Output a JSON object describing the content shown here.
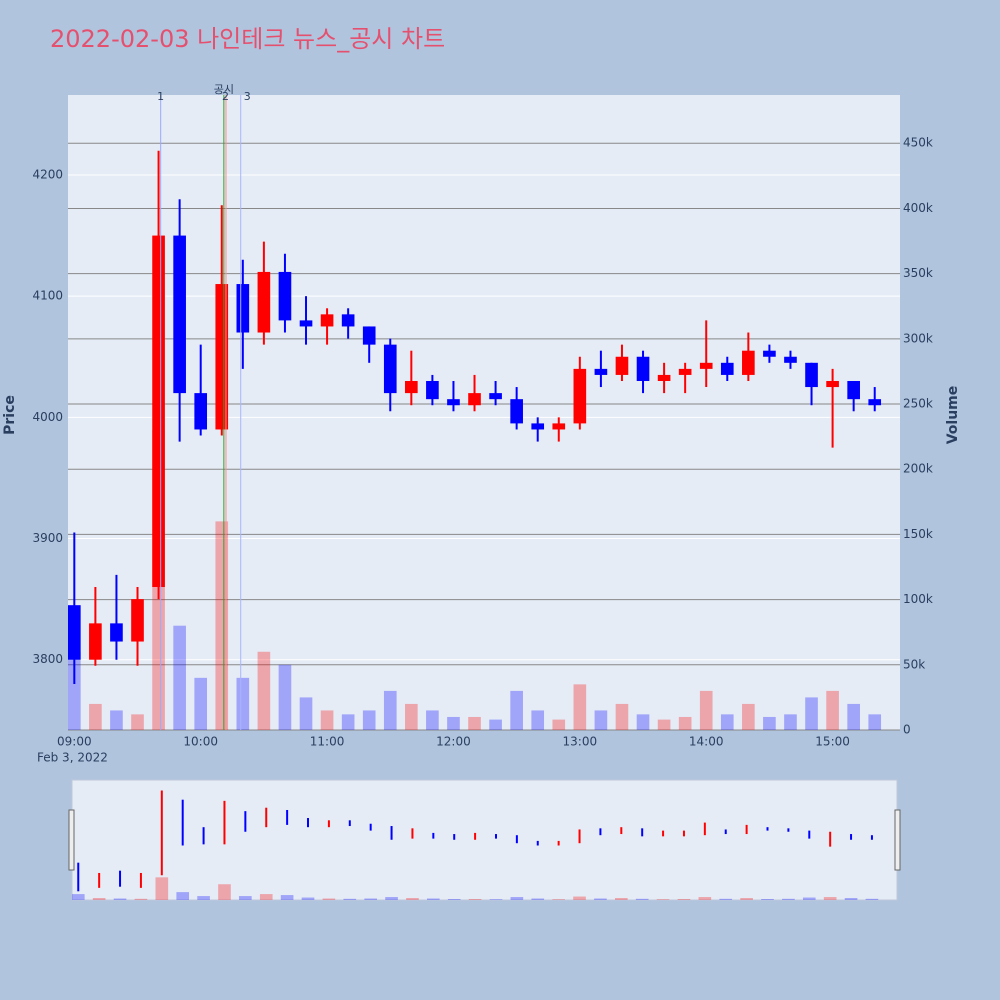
{
  "chart_data": {
    "type": "candlestick",
    "title": "2022-02-03 나인테크 뉴스_공시 차트",
    "y_title": "Price",
    "y2_title": "Volume",
    "x_sublabel": "Feb 3, 2022",
    "x": [
      "09:00",
      "09:10",
      "09:20",
      "09:30",
      "09:40",
      "09:50",
      "10:00",
      "10:10",
      "10:20",
      "10:30",
      "10:40",
      "10:50",
      "11:00",
      "11:10",
      "11:20",
      "11:30",
      "11:40",
      "11:50",
      "12:00",
      "12:10",
      "12:20",
      "12:30",
      "12:40",
      "12:50",
      "13:00",
      "13:10",
      "13:20",
      "13:30",
      "13:40",
      "13:50",
      "14:00",
      "14:10",
      "14:20",
      "14:30",
      "14:40",
      "14:50",
      "15:00",
      "15:10",
      "15:20"
    ],
    "open": [
      3845,
      3800,
      3830,
      3815,
      3860,
      4150,
      4020,
      3990,
      4110,
      4070,
      4120,
      4080,
      4075,
      4085,
      4075,
      4060,
      4020,
      4030,
      4015,
      4010,
      4020,
      4015,
      3995,
      3990,
      3995,
      4040,
      4035,
      4050,
      4030,
      4035,
      4040,
      4045,
      4035,
      4055,
      4050,
      4045,
      4025,
      4030,
      4015
    ],
    "high": [
      3905,
      3860,
      3870,
      3860,
      4220,
      4180,
      4060,
      4175,
      4130,
      4145,
      4135,
      4100,
      4090,
      4090,
      4075,
      4065,
      4055,
      4035,
      4030,
      4035,
      4030,
      4025,
      4000,
      4000,
      4050,
      4055,
      4060,
      4055,
      4045,
      4045,
      4080,
      4050,
      4070,
      4060,
      4055,
      4045,
      4040,
      4030,
      4025
    ],
    "low": [
      3780,
      3795,
      3800,
      3795,
      3850,
      3980,
      3985,
      3985,
      4040,
      4060,
      4070,
      4060,
      4060,
      4065,
      4045,
      4005,
      4010,
      4010,
      4005,
      4005,
      4010,
      3990,
      3980,
      3980,
      3990,
      4025,
      4030,
      4020,
      4020,
      4020,
      4025,
      4030,
      4030,
      4045,
      4040,
      4010,
      3975,
      4005,
      4005
    ],
    "close": [
      3800,
      3830,
      3815,
      3850,
      4150,
      4020,
      3990,
      4110,
      4070,
      4120,
      4080,
      4075,
      4085,
      4075,
      4060,
      4020,
      4030,
      4015,
      4010,
      4020,
      4015,
      3995,
      3990,
      3995,
      4040,
      4035,
      4050,
      4030,
      4035,
      4040,
      4045,
      4035,
      4055,
      4050,
      4045,
      4025,
      4030,
      4015,
      4010
    ],
    "volume": [
      60000,
      20000,
      15000,
      12000,
      230000,
      80000,
      40000,
      160000,
      40000,
      60000,
      50000,
      25000,
      15000,
      12000,
      15000,
      30000,
      20000,
      15000,
      10000,
      10000,
      8000,
      30000,
      15000,
      8000,
      35000,
      15000,
      20000,
      12000,
      8000,
      10000,
      30000,
      12000,
      20000,
      10000,
      12000,
      25000,
      30000,
      20000,
      12000
    ],
    "increasing_color": "#ff0000",
    "decreasing_color": "#0000ff",
    "annotations": [
      {
        "x": "09:41",
        "text": "1",
        "color": "#9aa8ff"
      },
      {
        "x": "10:11",
        "text": "공시",
        "color": "#2ca02c"
      },
      {
        "x": "10:12",
        "text": "2",
        "color": "#ff8c8c"
      },
      {
        "x": "10:19",
        "text": "3",
        "color": "#aab4ff"
      }
    ],
    "xlim": [
      "08:57",
      "15:32"
    ],
    "xticks": [
      "09:00",
      "10:00",
      "11:00",
      "12:00",
      "13:00",
      "14:00",
      "15:00"
    ],
    "ylim": [
      3742,
      4266
    ],
    "yticks": [
      3800,
      3900,
      4000,
      4100,
      4200
    ],
    "y2lim": [
      0,
      487000
    ],
    "y2ticks": [
      0,
      {
        "value": 50000,
        "label": "50k"
      },
      {
        "value": 100000,
        "label": "100k"
      },
      {
        "value": 150000,
        "label": "150k"
      },
      {
        "value": 200000,
        "label": "200k"
      },
      {
        "value": 250000,
        "label": "250k"
      },
      {
        "value": 300000,
        "label": "300k"
      },
      {
        "value": 350000,
        "label": "350k"
      },
      {
        "value": 400000,
        "label": "400k"
      },
      {
        "value": 450000,
        "label": "450k"
      }
    ],
    "grid": true
  }
}
